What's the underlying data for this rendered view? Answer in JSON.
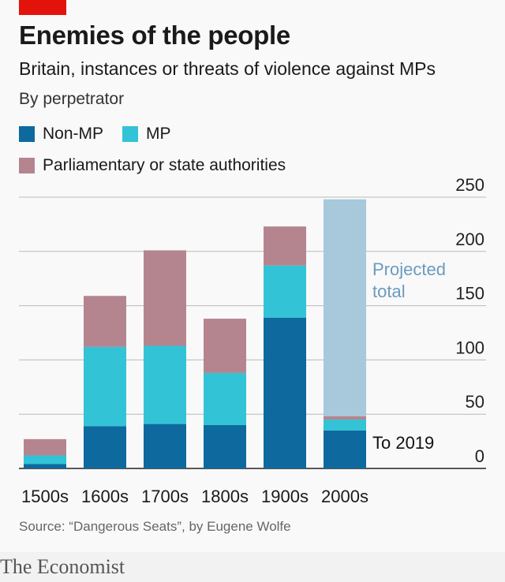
{
  "header": {
    "title": "Enemies of the people",
    "subtitle": "Britain, instances or threats of violence against MPs",
    "subsubtitle": "By perpetrator"
  },
  "legend": [
    {
      "label": "Non-MP",
      "color": "#0e6a9e"
    },
    {
      "label": "MP",
      "color": "#33c3d6"
    },
    {
      "label": "Parliamentary or state authorities",
      "color": "#b5858f"
    }
  ],
  "annotations": {
    "projected": [
      "Projected",
      "total"
    ],
    "to_date": "To 2019"
  },
  "colors": {
    "non_mp": "#0e6a9e",
    "mp": "#33c3d6",
    "authorities": "#b5858f",
    "projected": "#a7c9db",
    "projected_text": "#6a9bbd",
    "grid": "#b9b9b9",
    "accent": "#e3120b"
  },
  "chart_data": {
    "type": "bar",
    "stacked": true,
    "categories": [
      "1500s",
      "1600s",
      "1700s",
      "1800s",
      "1900s",
      "2000s"
    ],
    "series": [
      {
        "name": "Non-MP",
        "values": [
          4,
          39,
          41,
          40,
          139,
          35
        ]
      },
      {
        "name": "MP",
        "values": [
          8,
          73,
          72,
          48,
          48,
          10
        ]
      },
      {
        "name": "Parliamentary or state authorities",
        "values": [
          15,
          47,
          88,
          50,
          36,
          3
        ]
      }
    ],
    "projected": {
      "category": "2000s",
      "value": 248
    },
    "yticks": [
      0,
      50,
      100,
      150,
      200,
      250
    ],
    "ylim": [
      0,
      250
    ],
    "y_axis_side": "right",
    "grid": true
  },
  "footer": {
    "source": "Source: “Dangerous Seats”, by Eugene Wolfe",
    "brand": "The Economist"
  }
}
